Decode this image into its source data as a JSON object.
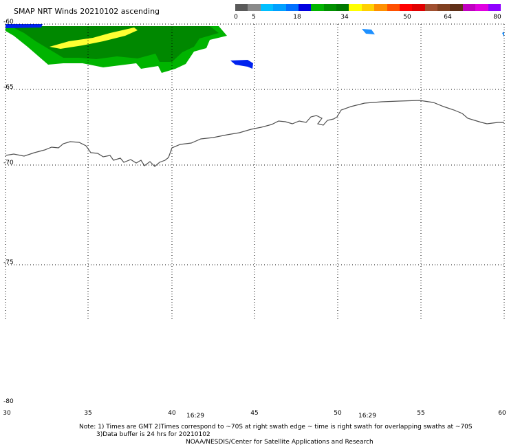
{
  "header": {
    "title": "SMAP NRT Winds 20210102 ascending"
  },
  "colorbar": {
    "labels": [
      "0",
      "5",
      "18",
      "34",
      "50",
      "64",
      "80"
    ],
    "segments": [
      "#5a5a5a",
      "#8a8a8a",
      "#00bfff",
      "#00a0ff",
      "#0070ff",
      "#0000e0",
      "#00b400",
      "#009000",
      "#007800",
      "#ffff00",
      "#ffd000",
      "#ff9000",
      "#ff5000",
      "#ff0000",
      "#e00000",
      "#a05030",
      "#804020",
      "#603018",
      "#c000c0",
      "#e000e0",
      "#9000ff"
    ]
  },
  "map": {
    "lat_labels": [
      "-60",
      "-65",
      "-70",
      "-75",
      "-80"
    ],
    "lon_labels": [
      "30",
      "35",
      "40",
      "45",
      "50",
      "55",
      "60"
    ],
    "times": [
      "16:29",
      "16:29"
    ],
    "wind_colors": {
      "green": "#00b400",
      "dark_green": "#008800",
      "yellow": "#ffff33",
      "blue": "#0022ee",
      "light_blue": "#1e90ff"
    }
  },
  "notes": {
    "line1": "Note: 1) Times are GMT 2)Times correspond to ~70S at right swath edge ~ time is right swath for overlapping swaths at ~70S",
    "line2": "3)Data buffer is 24 hrs for 20210102",
    "line3": "NOAA/NESDIS/Center for Satellite Applications and Research"
  }
}
